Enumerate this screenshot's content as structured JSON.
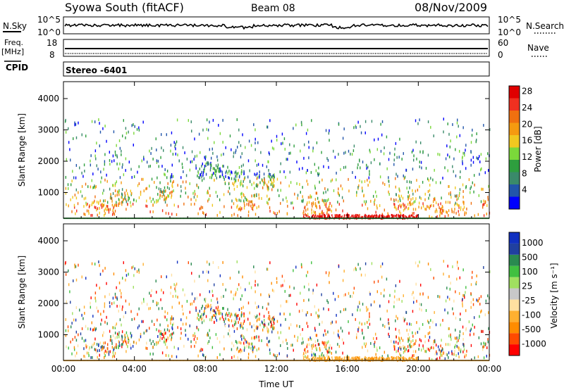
{
  "header": {
    "station": "Syowa South (fitACF)",
    "beam": "Beam 08",
    "date": "08/Nov/2009"
  },
  "strips": {
    "nsky_label": "N.Sky",
    "nsky_ticks": [
      "10^5",
      "10^0"
    ],
    "nsearch_label": "N.Search",
    "nsearch_ticks": [
      "10^5",
      "10^0"
    ],
    "freq_label_1": "Freq.",
    "freq_label_2": "[MHz]",
    "freq_ticks": [
      "18",
      "8"
    ],
    "nave_label": "Nave",
    "nave_ticks": [
      "60",
      "0"
    ],
    "cpid_label": "CPID",
    "cpid_value": "Stereo -6401"
  },
  "colors": {
    "power_scale": [
      "#0000ff",
      "#2255aa",
      "#3a8a6a",
      "#2e9e3e",
      "#7bd83a",
      "#f0c820",
      "#f59a10",
      "#f07010",
      "#f03020",
      "#e00000"
    ],
    "velocity_scale": [
      "#ff0000",
      "#ff4a00",
      "#ff8c00",
      "#ffb030",
      "#ffe0a0",
      "#c8c8c8",
      "#a0e060",
      "#40c040",
      "#2a8a50",
      "#2040a0",
      "#1030c0"
    ]
  },
  "chart_data": [
    {
      "type": "heatmap",
      "parameter": "Power",
      "xlabel": "",
      "ylabel": "Slant Range [km]",
      "x_ticks": [
        "00:00",
        "04:00",
        "08:00",
        "12:00",
        "16:00",
        "20:00",
        "00:00"
      ],
      "xlim_hours": [
        0,
        24
      ],
      "y_ticks": [
        1000,
        2000,
        3000,
        4000
      ],
      "ylim_km": [
        180,
        4540
      ],
      "colorbar_label": "Power [dB]",
      "colorbar_ticks": [
        4,
        8,
        12,
        16,
        20,
        24,
        28
      ],
      "colorbar_range": [
        0,
        30
      ]
    },
    {
      "type": "heatmap",
      "parameter": "Velocity",
      "xlabel": "Time UT",
      "ylabel": "Slant Range [km]",
      "x_ticks": [
        "00:00",
        "04:00",
        "08:00",
        "12:00",
        "16:00",
        "20:00",
        "00:00"
      ],
      "xlim_hours": [
        0,
        24
      ],
      "y_ticks": [
        1000,
        2000,
        3000,
        4000
      ],
      "ylim_km": [
        180,
        4540
      ],
      "colorbar_label": "Velocity [m s⁻¹]",
      "colorbar_ticks": [
        1000,
        500,
        100,
        25,
        -25,
        -100,
        -500,
        -1000
      ]
    }
  ]
}
